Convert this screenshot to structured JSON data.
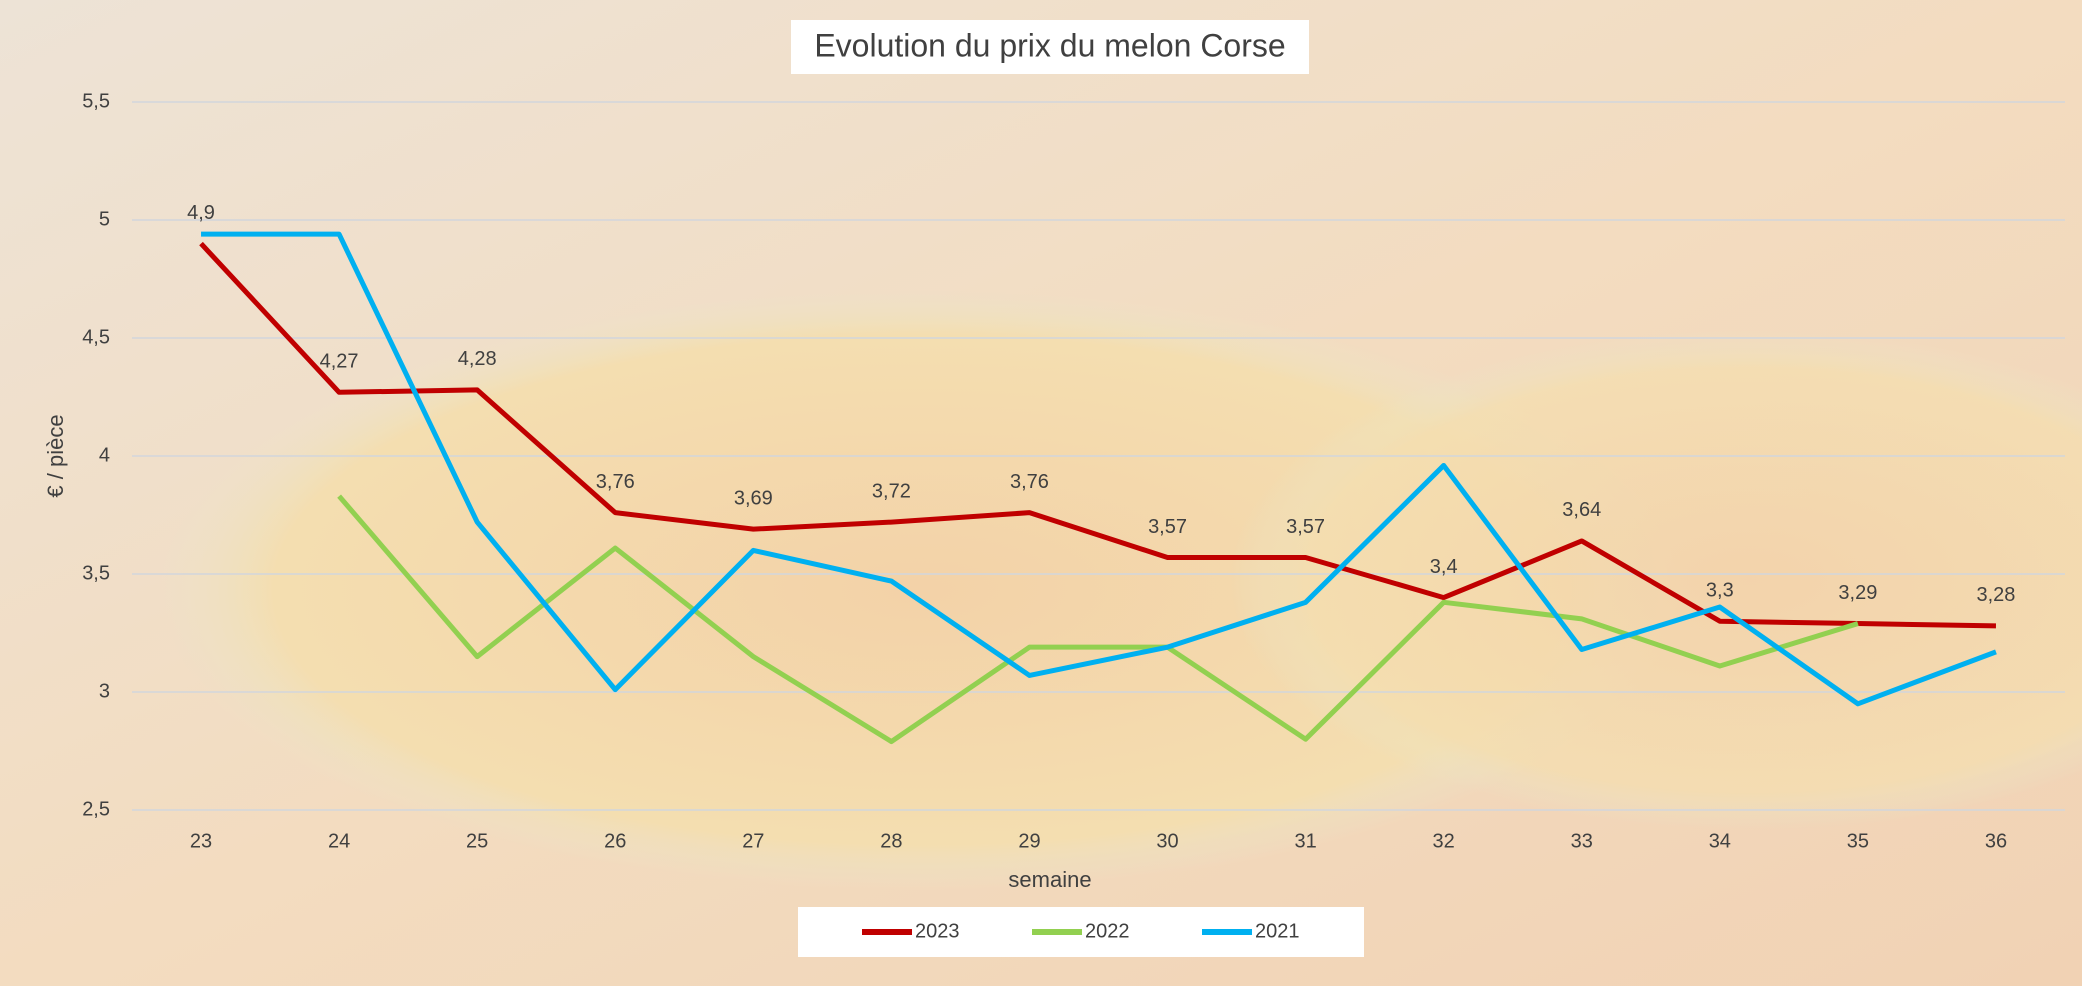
{
  "chart_data": {
    "type": "line",
    "title": "Evolution du prix du melon Corse",
    "x_label": "semaine",
    "y_label": "€ / pièce",
    "categories": [
      "23",
      "24",
      "25",
      "26",
      "27",
      "28",
      "29",
      "30",
      "31",
      "32",
      "33",
      "34",
      "35",
      "36"
    ],
    "series": [
      {
        "name": "2023",
        "color": "#c00000",
        "values": [
          4.9,
          4.27,
          4.28,
          3.76,
          3.69,
          3.72,
          3.76,
          3.57,
          3.57,
          3.4,
          3.64,
          3.3,
          3.29,
          3.28
        ],
        "value_labels": [
          "4,9",
          "4,27",
          "4,28",
          "3,76",
          "3,69",
          "3,72",
          "3,76",
          "3,57",
          "3,57",
          "3,4",
          "3,64",
          "3,3",
          "3,29",
          "3,28"
        ]
      },
      {
        "name": "2022",
        "color": "#92d050",
        "values": [
          null,
          3.83,
          3.15,
          3.61,
          3.15,
          2.79,
          3.19,
          3.19,
          2.8,
          3.38,
          3.31,
          3.11,
          3.29,
          null
        ]
      },
      {
        "name": "2021",
        "color": "#00b0f0",
        "values": [
          4.94,
          4.94,
          3.72,
          3.01,
          3.6,
          3.47,
          3.07,
          3.19,
          3.38,
          3.96,
          3.18,
          3.36,
          2.95,
          3.17
        ]
      }
    ],
    "ylim": [
      2.5,
      5.5
    ],
    "yticks": [
      {
        "value": 2.5,
        "label": "2,5"
      },
      3,
      {
        "value": 3.5,
        "label": "3,5"
      },
      4,
      {
        "value": 4.5,
        "label": "4,5"
      },
      5,
      {
        "value": 5.5,
        "label": "5,5"
      }
    ],
    "grid": true,
    "legend": "bottom"
  }
}
